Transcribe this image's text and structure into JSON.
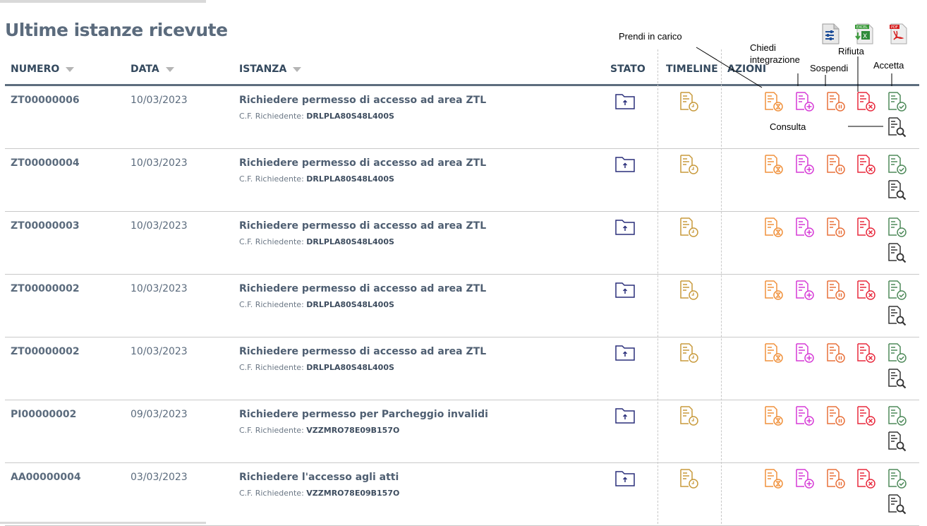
{
  "page_title": "Ultime istanze ricevute",
  "columns": {
    "numero": "NUMERO",
    "data": "DATA",
    "istanza": "ISTANZA",
    "stato": "STATO",
    "timeline": "TIMELINE",
    "azioni": "AZIONI"
  },
  "cf_label": "C.F. Richiedente:",
  "export": [
    {
      "icon": "settings-doc-icon"
    },
    {
      "icon": "excel-icon",
      "label": "EXCEL"
    },
    {
      "icon": "pdf-icon",
      "label": "PDF"
    }
  ],
  "annotations": {
    "prendi": "Prendi in carico",
    "chiedi": "Chiedi integrazione",
    "sospendi": "Sospendi",
    "rifiuta": "Rifiuta",
    "accetta": "Accetta",
    "consulta": "Consulta"
  },
  "colors": {
    "prendi": "#f0913c",
    "chiedi": "#d63ad6",
    "sospendi": "#e8703a",
    "rifiuta": "#e8283c",
    "accetta": "#4e8a5a",
    "consulta": "#333333",
    "timeline": "#c89a3c",
    "stato": "#2a2f7a"
  },
  "rows": [
    {
      "numero": "ZT00000006",
      "data": "10/03/2023",
      "istanza": "Richiedere permesso di accesso ad area ZTL",
      "cf": "DRLPLA80S48L400S"
    },
    {
      "numero": "ZT00000004",
      "data": "10/03/2023",
      "istanza": "Richiedere permesso di accesso ad area ZTL",
      "cf": "DRLPLA80S48L400S"
    },
    {
      "numero": "ZT00000003",
      "data": "10/03/2023",
      "istanza": "Richiedere permesso di accesso ad area ZTL",
      "cf": "DRLPLA80S48L400S"
    },
    {
      "numero": "ZT00000002",
      "data": "10/03/2023",
      "istanza": "Richiedere permesso di accesso ad area ZTL",
      "cf": "DRLPLA80S48L400S"
    },
    {
      "numero": "ZT00000002",
      "data": "10/03/2023",
      "istanza": "Richiedere permesso di accesso ad area ZTL",
      "cf": "DRLPLA80S48L400S"
    },
    {
      "numero": "PI00000002",
      "data": "09/03/2023",
      "istanza": "Richiedere permesso per Parcheggio invalidi",
      "cf": "VZZMRO78E09B157O"
    },
    {
      "numero": "AA00000004",
      "data": "03/03/2023",
      "istanza": "Richiedere l'accesso agli atti",
      "cf": "VZZMRO78E09B157O"
    }
  ]
}
